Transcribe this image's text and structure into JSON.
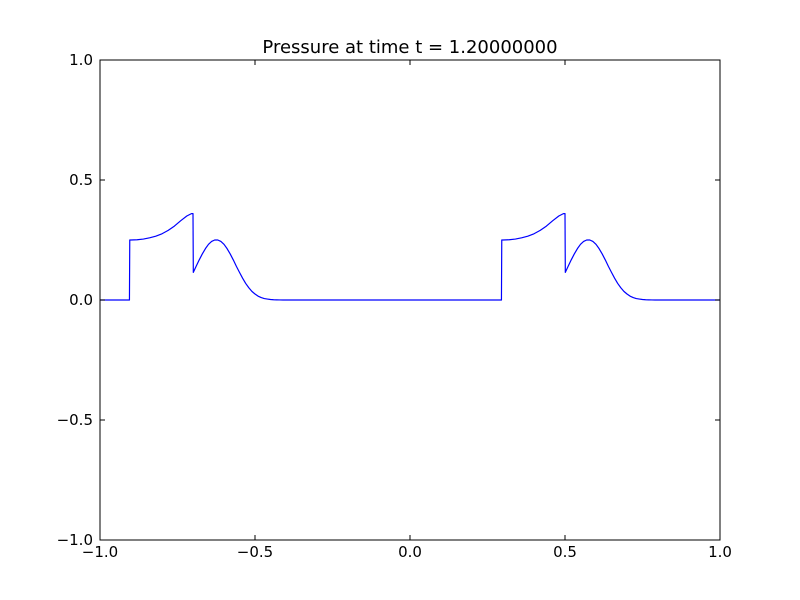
{
  "chart_data": {
    "type": "line",
    "title": "Pressure at time t =     1.20000000",
    "xlabel": "",
    "ylabel": "",
    "xlim": [
      -1.0,
      1.0
    ],
    "ylim": [
      -1.0,
      1.0
    ],
    "grid": false,
    "x_ticks": [
      -1.0,
      -0.5,
      0.0,
      0.5,
      1.0
    ],
    "x_tick_labels": [
      "−1.0",
      "−0.5",
      "0.0",
      "0.5",
      "1.0"
    ],
    "y_ticks": [
      -1.0,
      -0.5,
      0.0,
      0.5,
      1.0
    ],
    "y_tick_labels": [
      "−1.0",
      "−0.5",
      "0.0",
      "0.5",
      "1.0"
    ],
    "series": [
      {
        "color": "#0000ff",
        "x": [
          -1.0,
          -0.905,
          -0.904,
          -0.9,
          -0.88,
          -0.86,
          -0.84,
          -0.82,
          -0.8,
          -0.78,
          -0.76,
          -0.74,
          -0.72,
          -0.705,
          -0.7,
          -0.699,
          -0.69,
          -0.68,
          -0.67,
          -0.66,
          -0.65,
          -0.64,
          -0.63,
          -0.62,
          -0.61,
          -0.6,
          -0.59,
          -0.58,
          -0.57,
          -0.56,
          -0.55,
          -0.54,
          -0.53,
          -0.52,
          -0.51,
          -0.5,
          -0.49,
          -0.48,
          -0.47,
          -0.46,
          -0.45,
          -0.44,
          -0.43,
          -0.42,
          -0.41,
          -0.4,
          -0.38,
          -0.36,
          -0.34,
          -0.32,
          -0.3,
          0.0,
          0.295,
          0.296,
          0.3,
          0.32,
          0.34,
          0.36,
          0.38,
          0.4,
          0.42,
          0.44,
          0.46,
          0.48,
          0.495,
          0.5,
          0.501,
          0.51,
          0.52,
          0.53,
          0.54,
          0.55,
          0.56,
          0.57,
          0.58,
          0.59,
          0.6,
          0.61,
          0.62,
          0.63,
          0.64,
          0.65,
          0.66,
          0.67,
          0.68,
          0.69,
          0.7,
          0.71,
          0.72,
          0.73,
          0.74,
          0.75,
          0.76,
          0.77,
          0.78,
          0.79,
          0.8,
          0.82,
          0.84,
          0.86,
          0.88,
          0.9,
          1.0
        ],
        "y": [
          0.0,
          0.0,
          0.25,
          0.25,
          0.251,
          0.254,
          0.259,
          0.266,
          0.276,
          0.29,
          0.308,
          0.33,
          0.35,
          0.36,
          0.36,
          0.115,
          0.14,
          0.167,
          0.192,
          0.214,
          0.232,
          0.244,
          0.25,
          0.25,
          0.244,
          0.232,
          0.214,
          0.192,
          0.167,
          0.14,
          0.115,
          0.091,
          0.069,
          0.051,
          0.036,
          0.025,
          0.016,
          0.01,
          0.006,
          0.004,
          0.002,
          0.001,
          0.0005,
          0.0002,
          0.0001,
          0.0,
          0.0,
          0.0,
          0.0,
          0.0,
          0.0,
          0.0,
          0.0,
          0.25,
          0.25,
          0.251,
          0.254,
          0.259,
          0.266,
          0.276,
          0.29,
          0.308,
          0.33,
          0.35,
          0.36,
          0.36,
          0.115,
          0.14,
          0.167,
          0.192,
          0.214,
          0.232,
          0.244,
          0.25,
          0.25,
          0.244,
          0.232,
          0.214,
          0.192,
          0.167,
          0.14,
          0.115,
          0.091,
          0.069,
          0.051,
          0.036,
          0.025,
          0.016,
          0.01,
          0.006,
          0.004,
          0.002,
          0.001,
          0.0005,
          0.0002,
          0.0001,
          0.0,
          0.0,
          0.0,
          0.0,
          0.0,
          0.0,
          0.0
        ]
      }
    ]
  }
}
